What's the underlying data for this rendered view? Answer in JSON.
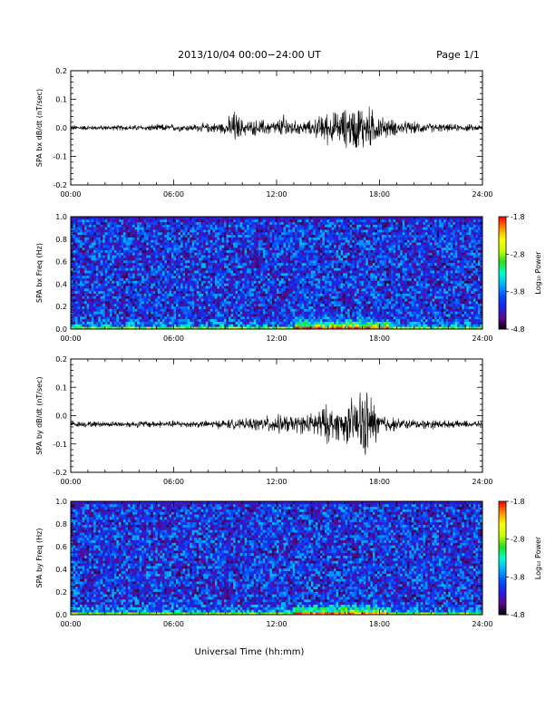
{
  "header": {
    "title": "2013/10/04  00:00−24:00 UT",
    "page": "Page 1/1"
  },
  "x_axis": {
    "label": "Universal Time (hh:mm)",
    "ticks": [
      "00:00",
      "06:00",
      "12:00",
      "18:00",
      "24:00"
    ],
    "range_hours": [
      0,
      24
    ]
  },
  "colorbar": {
    "label": "Log₁₀ Power",
    "ticks": [
      "-1.8",
      "-2.8",
      "-3.8",
      "-4.8"
    ],
    "range": [
      -4.8,
      -1.8
    ],
    "colormap": [
      "#000000",
      "#5a0a8a",
      "#2020e0",
      "#0050ff",
      "#00b0ff",
      "#00ffd0",
      "#20e020",
      "#c8ff00",
      "#ffff00",
      "#ff9000",
      "#ff0000"
    ]
  },
  "chart_data": [
    {
      "type": "line",
      "ylabel": "SPA bx dB/dt (nT/sec)",
      "ylim": [
        -0.2,
        0.2
      ],
      "yticks": [
        "0.2",
        "0.1",
        "0.0",
        "-0.1",
        "-0.2"
      ],
      "baseline": 0.0,
      "envelope": {
        "x": [
          0,
          1,
          2,
          3,
          4,
          5,
          6,
          7,
          8,
          9,
          9.5,
          10,
          10.5,
          11,
          12,
          12.5,
          13,
          14,
          14.5,
          15,
          15.5,
          16,
          16.5,
          17,
          17.5,
          18,
          19,
          20,
          21,
          22,
          23,
          24
        ],
        "amp": [
          0.012,
          0.01,
          0.01,
          0.012,
          0.012,
          0.015,
          0.015,
          0.015,
          0.02,
          0.025,
          0.075,
          0.035,
          0.03,
          0.035,
          0.03,
          0.06,
          0.03,
          0.03,
          0.05,
          0.07,
          0.065,
          0.08,
          0.09,
          0.1,
          0.085,
          0.05,
          0.03,
          0.025,
          0.02,
          0.015,
          0.015,
          0.012
        ]
      }
    },
    {
      "type": "heatmap",
      "ylabel": "SPA bx Freq (Hz)",
      "ylim": [
        0.0,
        1.0
      ],
      "yticks": [
        "1.0",
        "0.8",
        "0.6",
        "0.4",
        "0.2",
        "0.0"
      ],
      "zlim": [
        -4.8,
        -1.8
      ],
      "background": -4.1,
      "lowfreq_peak": {
        "start": 13,
        "end": 18.5,
        "value": -2.6
      }
    },
    {
      "type": "line",
      "ylabel": "SPA by dB/dt (nT/sec)",
      "ylim": [
        -0.2,
        0.2
      ],
      "yticks": [
        "0.2",
        "0.1",
        "0.0",
        "-0.1",
        "-0.2"
      ],
      "baseline": -0.03,
      "envelope": {
        "x": [
          0,
          1,
          2,
          3,
          4,
          5,
          6,
          7,
          8,
          9,
          10,
          11,
          12,
          13,
          13.5,
          14,
          14.5,
          15,
          15.5,
          16,
          16.5,
          17,
          17.5,
          18,
          19,
          20,
          21,
          22,
          23,
          24
        ],
        "amp": [
          0.012,
          0.012,
          0.012,
          0.012,
          0.015,
          0.015,
          0.015,
          0.015,
          0.015,
          0.02,
          0.02,
          0.03,
          0.04,
          0.035,
          0.04,
          0.045,
          0.07,
          0.08,
          0.065,
          0.075,
          0.11,
          0.16,
          0.12,
          0.05,
          0.025,
          0.02,
          0.02,
          0.015,
          0.015,
          0.012
        ]
      }
    },
    {
      "type": "heatmap",
      "ylabel": "SPA by Freq (Hz)",
      "ylim": [
        0.0,
        1.0
      ],
      "yticks": [
        "1.0",
        "0.8",
        "0.6",
        "0.4",
        "0.2",
        "0.0"
      ],
      "zlim": [
        -4.8,
        -1.8
      ],
      "background": -4.1,
      "lowfreq_peak": {
        "start": 13,
        "end": 18.5,
        "value": -2.4
      }
    }
  ]
}
